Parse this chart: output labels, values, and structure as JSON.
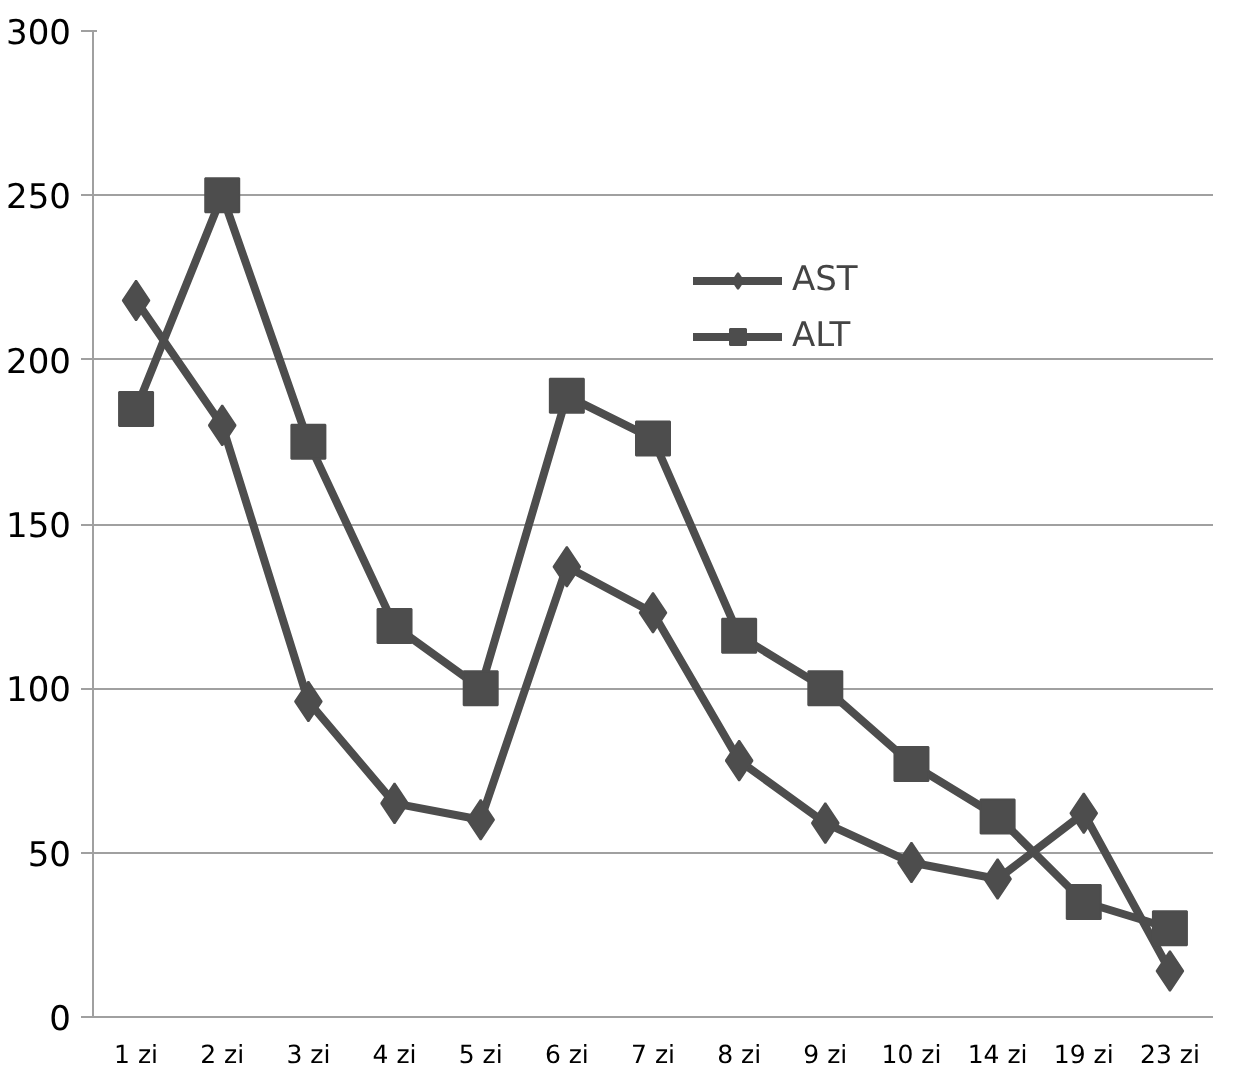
{
  "chart_data": {
    "type": "line",
    "categories": [
      "1 zi",
      "2 zi",
      "3 zi",
      "4 zi",
      "5 zi",
      "6 zi",
      "7 zi",
      "8 zi",
      "9 zi",
      "10 zi",
      "14 zi",
      "19 zi",
      "23 zi"
    ],
    "series": [
      {
        "name": "AST",
        "color": "#4d4d4d",
        "marker": "diamond",
        "values": [
          218,
          180,
          96,
          65,
          60,
          137,
          123,
          78,
          59,
          47,
          42,
          62,
          14
        ]
      },
      {
        "name": "ALT",
        "color": "#4d4d4d",
        "marker": "square",
        "values": [
          185,
          250,
          175,
          119,
          100,
          189,
          176,
          116,
          100,
          77,
          61,
          35,
          27
        ]
      }
    ],
    "ylim": [
      0,
      300
    ],
    "yticks": [
      0,
      50,
      100,
      150,
      200,
      250,
      300
    ],
    "grid": "y",
    "legend": "top right",
    "line_style": "solid"
  }
}
